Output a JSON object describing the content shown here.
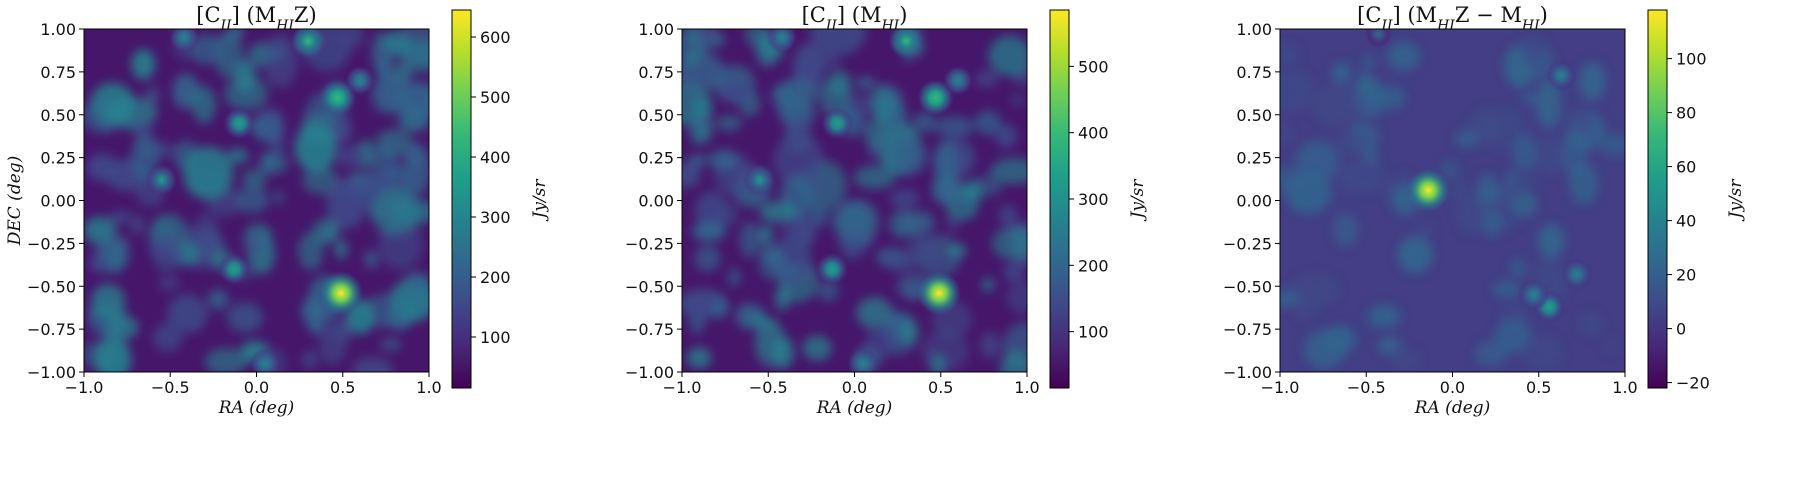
{
  "chart_data": [
    {
      "type": "heatmap",
      "title_parts": [
        {
          "t": "[C"
        },
        {
          "t": "II",
          "sub": true
        },
        {
          "t": "] (M"
        },
        {
          "t": "HI",
          "sub": true
        },
        {
          "t": "Z)"
        }
      ],
      "xlabel": "RA (deg)",
      "ylabel": "DEC (deg)",
      "xlim": [
        -1.0,
        1.0
      ],
      "ylim": [
        -1.0,
        1.0
      ],
      "xticks": [
        "−1.0",
        "−0.5",
        "0.0",
        "0.5",
        "1.0"
      ],
      "yticks": [
        "1.00",
        "0.75",
        "0.50",
        "0.25",
        "0.00",
        "−0.25",
        "−0.50",
        "−0.75",
        "−1.00"
      ],
      "colormap": "viridis",
      "colorbar": {
        "label": "Jy/sr",
        "min": 15,
        "max": 645,
        "ticks": [
          100,
          200,
          300,
          400,
          500,
          600
        ]
      },
      "peaks": [
        {
          "x": 0.49,
          "y": -0.54,
          "value": 640
        },
        {
          "x": 0.3,
          "y": 0.93,
          "value": 420
        },
        {
          "x": 0.47,
          "y": 0.6,
          "value": 450
        },
        {
          "x": -0.1,
          "y": 0.45,
          "value": 360
        },
        {
          "x": -0.55,
          "y": 0.12,
          "value": 330
        },
        {
          "x": -0.13,
          "y": -0.4,
          "value": 350
        },
        {
          "x": 0.05,
          "y": -0.95,
          "value": 310
        },
        {
          "x": -0.42,
          "y": 0.95,
          "value": 300
        },
        {
          "x": 0.6,
          "y": 0.7,
          "value": 280
        }
      ]
    },
    {
      "type": "heatmap",
      "title_parts": [
        {
          "t": "[C"
        },
        {
          "t": "II",
          "sub": true
        },
        {
          "t": "] (M"
        },
        {
          "t": "HI",
          "sub": true
        },
        {
          "t": ")"
        }
      ],
      "xlabel": "RA (deg)",
      "ylabel": "",
      "xlim": [
        -1.0,
        1.0
      ],
      "ylim": [
        -1.0,
        1.0
      ],
      "xticks": [
        "−1.0",
        "−0.5",
        "0.0",
        "0.5",
        "1.0"
      ],
      "yticks": [
        "1.00",
        "0.75",
        "0.50",
        "0.25",
        "0.00",
        "−0.25",
        "−0.50",
        "−0.75",
        "−1.00"
      ],
      "colormap": "viridis",
      "colorbar": {
        "label": "Jy/sr",
        "min": 15,
        "max": 585,
        "ticks": [
          100,
          200,
          300,
          400,
          500
        ]
      },
      "peaks": [
        {
          "x": 0.49,
          "y": -0.54,
          "value": 580
        },
        {
          "x": 0.3,
          "y": 0.93,
          "value": 380
        },
        {
          "x": 0.47,
          "y": 0.6,
          "value": 410
        },
        {
          "x": -0.1,
          "y": 0.45,
          "value": 330
        },
        {
          "x": -0.55,
          "y": 0.12,
          "value": 310
        },
        {
          "x": -0.13,
          "y": -0.4,
          "value": 330
        },
        {
          "x": 0.05,
          "y": -0.95,
          "value": 290
        },
        {
          "x": -0.42,
          "y": 0.95,
          "value": 280
        },
        {
          "x": 0.6,
          "y": 0.7,
          "value": 260
        }
      ]
    },
    {
      "type": "heatmap",
      "title_parts": [
        {
          "t": "[C"
        },
        {
          "t": "II",
          "sub": true
        },
        {
          "t": "] (M"
        },
        {
          "t": "HI",
          "sub": true
        },
        {
          "t": "Z − M"
        },
        {
          "t": "HI",
          "sub": true
        },
        {
          "t": ")"
        }
      ],
      "xlabel": "RA (deg)",
      "ylabel": "",
      "xlim": [
        -1.0,
        1.0
      ],
      "ylim": [
        -1.0,
        1.0
      ],
      "xticks": [
        "−1.0",
        "−0.5",
        "0.0",
        "0.5",
        "1.0"
      ],
      "yticks": [
        "1.00",
        "0.75",
        "0.50",
        "0.25",
        "0.00",
        "−0.25",
        "−0.50",
        "−0.75",
        "−1.00"
      ],
      "colormap": "viridis",
      "colorbar": {
        "label": "Jy/sr",
        "min": -22,
        "max": 118,
        "ticks": [
          -20,
          0,
          20,
          40,
          60,
          80,
          100
        ]
      },
      "peaks": [
        {
          "x": -0.14,
          "y": 0.06,
          "value": 115
        },
        {
          "x": 0.56,
          "y": -0.62,
          "value": 55
        },
        {
          "x": 0.47,
          "y": -0.55,
          "value": 45
        },
        {
          "x": 0.72,
          "y": -0.43,
          "value": 40
        },
        {
          "x": 0.63,
          "y": 0.73,
          "value": 35
        },
        {
          "x": -0.43,
          "y": 0.97,
          "value": 25
        }
      ]
    }
  ]
}
